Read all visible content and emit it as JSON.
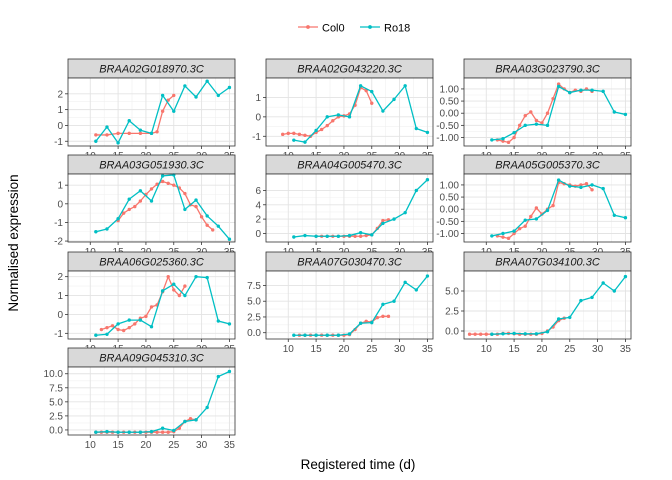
{
  "chart_data": {
    "type": "line",
    "xlabel": "Registered time (d)",
    "ylabel": "Normalised expression",
    "legend": {
      "placement": "top",
      "entries": [
        {
          "name": "Col0",
          "color": "#F8766D"
        },
        {
          "name": "Ro18",
          "color": "#00BFC4"
        }
      ]
    },
    "x_ticks": [
      10,
      15,
      20,
      25,
      30,
      35
    ],
    "xlim": [
      6,
      36
    ],
    "grid": true,
    "facets": [
      {
        "title": "BRAA02G018970.3C",
        "ylim": [
          -1.3,
          3.0
        ],
        "yticks": [
          -1,
          0,
          1,
          2
        ],
        "ytick_labels": [
          "-1",
          "0",
          "1",
          "2"
        ],
        "series": [
          {
            "name": "Col0",
            "x": [
              11,
              13,
              15,
              17,
              19,
              21,
              22,
              23,
              24,
              25
            ],
            "y": [
              -0.6,
              -0.6,
              -0.5,
              -0.5,
              -0.5,
              -0.5,
              -0.4,
              0.9,
              1.6,
              1.9
            ]
          },
          {
            "name": "Ro18",
            "x": [
              11,
              13,
              15,
              17,
              19,
              21,
              23,
              25,
              27,
              29,
              31,
              33,
              35
            ],
            "y": [
              -1.0,
              -0.1,
              -1.1,
              0.3,
              -0.3,
              -0.5,
              1.9,
              0.9,
              2.5,
              1.8,
              2.8,
              1.9,
              2.4
            ]
          }
        ]
      },
      {
        "title": "BRAA02G043220.3C",
        "ylim": [
          -1.5,
          2.0
        ],
        "yticks": [
          -1,
          0,
          1
        ],
        "ytick_labels": [
          "-1",
          "0",
          "1"
        ],
        "series": [
          {
            "name": "Col0",
            "x": [
              9,
              10,
              11,
              12,
              13,
              14,
              15,
              16,
              17,
              18,
              19,
              20,
              21,
              22,
              23,
              24,
              25
            ],
            "y": [
              -0.9,
              -0.85,
              -0.85,
              -0.9,
              -0.95,
              -1.0,
              -0.8,
              -0.65,
              -0.45,
              -0.2,
              0.0,
              0.05,
              0.15,
              0.6,
              1.5,
              1.35,
              0.7
            ]
          },
          {
            "name": "Ro18",
            "x": [
              11,
              13,
              15,
              17,
              19,
              21,
              23,
              25,
              27,
              29,
              31,
              33,
              35
            ],
            "y": [
              -1.2,
              -1.3,
              -0.7,
              0.0,
              0.1,
              0.0,
              1.6,
              1.3,
              0.3,
              0.9,
              1.6,
              -0.6,
              -0.8
            ]
          }
        ]
      },
      {
        "title": "BRAA03G023790.3C",
        "ylim": [
          -1.35,
          1.45
        ],
        "yticks": [
          -1.0,
          -0.5,
          0.0,
          0.5,
          1.0
        ],
        "ytick_labels": [
          "-1.00",
          "-0.50",
          "0.00",
          "0.50",
          "1.00"
        ],
        "series": [
          {
            "name": "Col0",
            "x": [
              12,
              13,
              14,
              15,
              16,
              17,
              18,
              19,
              20,
              21,
              22,
              23,
              24,
              25,
              26,
              27,
              28,
              29
            ],
            "y": [
              -1.1,
              -1.15,
              -1.2,
              -1.0,
              -0.5,
              -0.1,
              0.05,
              -0.3,
              -0.4,
              0.0,
              0.6,
              1.2,
              1.0,
              0.85,
              0.95,
              0.9,
              1.0,
              0.9
            ]
          },
          {
            "name": "Ro18",
            "x": [
              11,
              13,
              15,
              17,
              19,
              21,
              23,
              25,
              27,
              29,
              31,
              33,
              35
            ],
            "y": [
              -1.1,
              -1.05,
              -0.8,
              -0.5,
              -0.45,
              -0.5,
              1.1,
              0.85,
              0.95,
              0.95,
              0.9,
              0.05,
              -0.05
            ]
          }
        ]
      },
      {
        "title": "BRAA03G051930.3C",
        "ylim": [
          -2.05,
          1.6
        ],
        "yticks": [
          -2,
          -1,
          0,
          1
        ],
        "ytick_labels": [
          "-2",
          "-1",
          "0",
          "1"
        ],
        "series": [
          {
            "name": "Col0",
            "x": [
              15,
              16,
              17,
              18,
              19,
              20,
              21,
              22,
              23,
              24,
              25,
              26,
              27,
              28,
              29,
              30,
              31,
              32
            ],
            "y": [
              -0.9,
              -0.5,
              -0.3,
              -0.15,
              0.15,
              0.5,
              0.8,
              1.05,
              1.2,
              1.1,
              1.0,
              0.85,
              0.55,
              -0.05,
              -0.15,
              -0.7,
              -1.15,
              -1.4
            ]
          },
          {
            "name": "Ro18",
            "x": [
              11,
              13,
              15,
              17,
              19,
              21,
              23,
              25,
              27,
              29,
              31,
              33,
              35
            ],
            "y": [
              -1.5,
              -1.35,
              -0.8,
              0.25,
              0.7,
              0.15,
              1.5,
              1.55,
              -0.3,
              0.2,
              -0.65,
              -1.2,
              -1.9
            ]
          }
        ]
      },
      {
        "title": "BRAA04G005470.3C",
        "ylim": [
          -1.2,
          8.3
        ],
        "yticks": [
          0,
          2,
          4,
          6
        ],
        "ytick_labels": [
          "0",
          "2",
          "4",
          "6"
        ],
        "series": [
          {
            "name": "Col0",
            "x": [
              15,
              16,
              17,
              18,
              19,
              20,
              21,
              22,
              23,
              24,
              25,
              26,
              27,
              28
            ],
            "y": [
              -0.4,
              -0.4,
              -0.4,
              -0.4,
              -0.4,
              -0.4,
              -0.4,
              -0.4,
              -0.4,
              -0.3,
              -0.2,
              0.7,
              1.8,
              1.9
            ]
          },
          {
            "name": "Ro18",
            "x": [
              11,
              13,
              15,
              17,
              19,
              21,
              23,
              25,
              27,
              29,
              31,
              33,
              35
            ],
            "y": [
              -0.5,
              -0.3,
              -0.4,
              -0.4,
              -0.4,
              -0.3,
              0.1,
              -0.2,
              1.4,
              2.0,
              2.9,
              6.0,
              7.5
            ]
          }
        ]
      },
      {
        "title": "BRAA05G005370.3C",
        "ylim": [
          -1.35,
          1.45
        ],
        "yticks": [
          -1.0,
          -0.5,
          0.0,
          0.5,
          1.0
        ],
        "ytick_labels": [
          "-1.00",
          "-0.50",
          "0.00",
          "0.50",
          "1.00"
        ],
        "series": [
          {
            "name": "Col0",
            "x": [
              12,
              13,
              14,
              15,
              16,
              17,
              18,
              19,
              20,
              21,
              22,
              23,
              24,
              25,
              26,
              27,
              28,
              29
            ],
            "y": [
              -1.1,
              -1.15,
              -1.2,
              -1.0,
              -0.8,
              -0.7,
              -0.3,
              0.05,
              -0.2,
              0.0,
              0.15,
              1.1,
              1.05,
              1.0,
              0.95,
              1.0,
              1.05,
              0.8
            ]
          },
          {
            "name": "Ro18",
            "x": [
              11,
              13,
              15,
              17,
              19,
              21,
              23,
              25,
              27,
              29,
              31,
              33,
              35
            ],
            "y": [
              -1.1,
              -1.0,
              -0.9,
              -0.45,
              -0.4,
              -0.05,
              1.2,
              0.95,
              0.9,
              1.0,
              0.85,
              -0.25,
              -0.35
            ]
          }
        ]
      },
      {
        "title": "BRAA06G025360.3C",
        "ylim": [
          -1.3,
          2.3
        ],
        "yticks": [
          -1,
          0,
          1,
          2
        ],
        "ytick_labels": [
          "-1",
          "0",
          "1",
          "2"
        ],
        "series": [
          {
            "name": "Col0",
            "x": [
              12,
              13,
              14,
              15,
              16,
              17,
              18,
              19,
              20,
              21,
              22,
              23,
              24,
              25,
              26,
              27
            ],
            "y": [
              -0.8,
              -0.7,
              -0.6,
              -0.8,
              -0.85,
              -0.7,
              -0.5,
              -0.2,
              -0.1,
              0.4,
              0.5,
              1.2,
              2.0,
              1.3,
              1.0,
              1.5
            ]
          },
          {
            "name": "Ro18",
            "x": [
              11,
              13,
              15,
              17,
              19,
              21,
              23,
              25,
              27,
              29,
              31,
              33,
              35
            ],
            "y": [
              -1.1,
              -1.05,
              -0.5,
              -0.3,
              -0.3,
              -0.65,
              1.25,
              1.6,
              1.0,
              2.0,
              1.95,
              -0.35,
              -0.5
            ]
          }
        ]
      },
      {
        "title": "BRAA07G030470.3C",
        "ylim": [
          -1.0,
          9.8
        ],
        "yticks": [
          0.0,
          2.5,
          5.0,
          7.5
        ],
        "ytick_labels": [
          "0.0",
          "2.5",
          "5.0",
          "7.5"
        ],
        "series": [
          {
            "name": "Col0",
            "x": [
              12,
              13,
              14,
              15,
              16,
              17,
              18,
              19,
              20,
              21,
              22,
              23,
              24,
              25,
              26,
              27,
              28
            ],
            "y": [
              -0.4,
              -0.4,
              -0.4,
              -0.4,
              -0.4,
              -0.4,
              -0.4,
              -0.4,
              -0.4,
              -0.3,
              0.5,
              1.5,
              1.8,
              1.7,
              2.4,
              2.6,
              2.6
            ]
          },
          {
            "name": "Ro18",
            "x": [
              11,
              13,
              15,
              17,
              19,
              21,
              23,
              25,
              27,
              29,
              31,
              33,
              35
            ],
            "y": [
              -0.4,
              -0.4,
              -0.4,
              -0.4,
              -0.4,
              -0.2,
              1.5,
              1.6,
              4.5,
              5.0,
              8.0,
              6.8,
              9.0
            ]
          }
        ]
      },
      {
        "title": "BRAA07G034100.3C",
        "ylim": [
          -1.0,
          7.5
        ],
        "yticks": [
          0.0,
          2.5,
          5.0
        ],
        "ytick_labels": [
          "0.0",
          "2.5",
          "5.0"
        ],
        "series": [
          {
            "name": "Col0",
            "x": [
              7,
              8,
              9,
              10,
              11,
              12,
              13,
              14,
              15,
              16,
              17,
              18,
              19,
              20,
              21,
              22,
              23,
              24
            ],
            "y": [
              -0.4,
              -0.4,
              -0.4,
              -0.4,
              -0.4,
              -0.4,
              -0.3,
              -0.3,
              -0.35,
              -0.4,
              -0.4,
              -0.4,
              -0.4,
              -0.3,
              0.0,
              0.5,
              1.3,
              1.6
            ]
          },
          {
            "name": "Ro18",
            "x": [
              11,
              13,
              15,
              17,
              19,
              21,
              23,
              25,
              27,
              29,
              31,
              33,
              35
            ],
            "y": [
              -0.4,
              -0.35,
              -0.3,
              -0.35,
              -0.35,
              -0.1,
              1.5,
              1.7,
              3.8,
              4.2,
              6.0,
              5.0,
              6.8
            ]
          }
        ]
      },
      {
        "title": "BRAA09G045310.3C",
        "ylim": [
          -0.9,
          11.2
        ],
        "yticks": [
          0.0,
          2.5,
          5.0,
          7.5,
          10.0
        ],
        "ytick_labels": [
          "0.0",
          "2.5",
          "5.0",
          "7.5",
          "10.0"
        ],
        "series": [
          {
            "name": "Col0",
            "x": [
              11,
              12,
              13,
              14,
              15,
              16,
              17,
              18,
              19,
              20,
              21,
              22,
              23,
              24,
              25,
              26,
              27,
              28,
              29
            ],
            "y": [
              -0.4,
              -0.4,
              -0.4,
              -0.4,
              -0.4,
              -0.4,
              -0.4,
              -0.4,
              -0.4,
              -0.4,
              -0.4,
              -0.4,
              -0.4,
              -0.4,
              -0.3,
              0.3,
              1.5,
              2.0,
              1.8
            ]
          },
          {
            "name": "Ro18",
            "x": [
              11,
              13,
              15,
              17,
              19,
              21,
              23,
              25,
              27,
              29,
              31,
              33,
              35
            ],
            "y": [
              -0.4,
              -0.3,
              -0.4,
              -0.4,
              -0.4,
              -0.3,
              0.3,
              -0.1,
              1.5,
              1.8,
              4.0,
              9.5,
              10.4
            ]
          }
        ]
      }
    ]
  }
}
